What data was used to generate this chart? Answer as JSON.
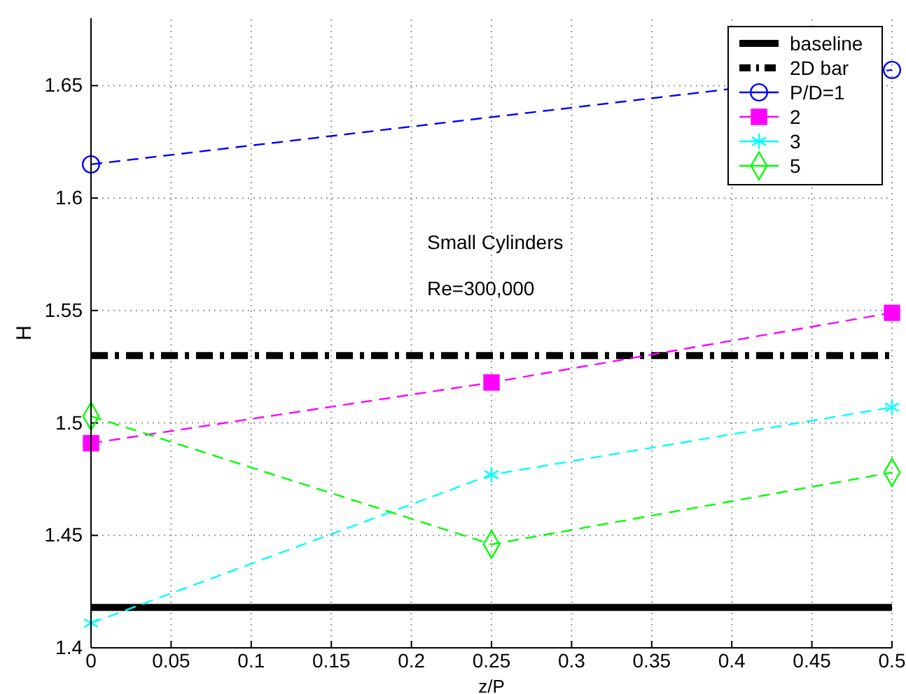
{
  "chart_data": {
    "type": "line",
    "xlabel": "z/P",
    "ylabel": "H",
    "annotations": [
      "Small Cylinders",
      "Re=300,000"
    ],
    "xlim": [
      0,
      0.5
    ],
    "xticks": [
      0,
      0.05,
      0.1,
      0.15,
      0.2,
      0.25,
      0.3,
      0.35,
      0.4,
      0.45,
      0.5
    ],
    "ylim": [
      1.4,
      1.68
    ],
    "yticks": [
      1.4,
      1.45,
      1.5,
      1.55,
      1.6,
      1.65
    ],
    "grid": true,
    "legend": "top right",
    "series": [
      {
        "name": "baseline",
        "color": "#000000",
        "x": [
          0,
          0.5
        ],
        "values": [
          1.418,
          1.418
        ],
        "line_style": "solid",
        "marker": "none"
      },
      {
        "name": "2D bar",
        "color": "#000000",
        "x": [
          0,
          0.5
        ],
        "values": [
          1.53,
          1.53
        ],
        "line_style": "dashdot",
        "marker": "none"
      },
      {
        "name": "P/D=1",
        "color": "#0000ff",
        "x": [
          0,
          0.5
        ],
        "values": [
          1.615,
          1.657
        ],
        "line_style": "dashed",
        "marker": "circle"
      },
      {
        "name": "2",
        "color": "#ff00ff",
        "x": [
          0,
          0.25,
          0.5
        ],
        "values": [
          1.491,
          1.518,
          1.549
        ],
        "line_style": "dashed",
        "marker": "square"
      },
      {
        "name": "3",
        "color": "#00ffff",
        "x": [
          0,
          0.25,
          0.5
        ],
        "values": [
          1.411,
          1.477,
          1.507
        ],
        "line_style": "dashed",
        "marker": "cross"
      },
      {
        "name": "5",
        "color": "#00ff00",
        "x": [
          0,
          0.25,
          0.5
        ],
        "values": [
          1.503,
          1.446,
          1.478
        ],
        "line_style": "dashed",
        "marker": "diamond"
      }
    ]
  }
}
